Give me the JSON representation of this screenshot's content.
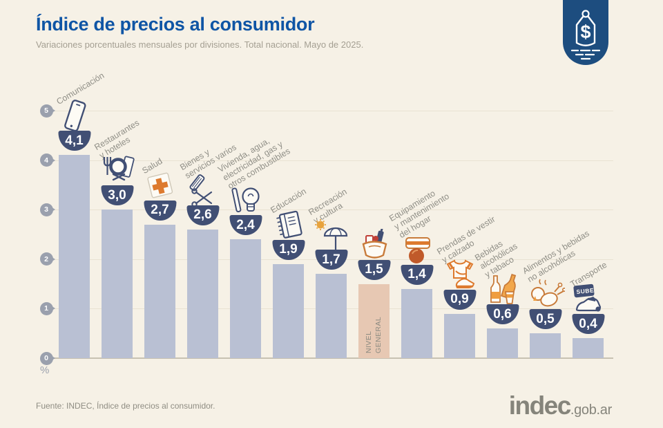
{
  "header": {
    "title": "Índice de precios al consumidor",
    "subtitle": "Variaciones porcentuales mensuales por divisiones. Total nacional. Mayo de 2025."
  },
  "brand": {
    "tag_icon": "price-tag-icon",
    "tag_symbol": "$"
  },
  "chart_data": {
    "type": "bar",
    "title": "Índice de precios al consumidor",
    "subtitle": "Variaciones porcentuales mensuales por divisiones. Total nacional. Mayo de 2025.",
    "unit": "%",
    "ylim": [
      0,
      5
    ],
    "yticks": [
      0,
      1,
      2,
      3,
      4,
      5
    ],
    "grid": true,
    "legend": "none",
    "highlight_category": "Nivel general",
    "categories": [
      "Comunicación",
      "Restaurantes y hoteles",
      "Salud",
      "Bienes y servicios varios",
      "Vivienda, agua, electricidad, gas y otros combustibles",
      "Educación",
      "Recreación y cultura",
      "Nivel general",
      "Equipamiento y mantenimiento del hogar",
      "Prendas de vestir y calzado",
      "Bebidas alcohólicas y tabaco",
      "Alimentos y bebidas no alcohólicas",
      "Transporte"
    ],
    "values": [
      4.1,
      3.0,
      2.7,
      2.6,
      2.4,
      1.9,
      1.7,
      1.5,
      1.4,
      0.9,
      0.6,
      0.5,
      0.4
    ],
    "items": [
      {
        "label": "Comunicación",
        "label_lines": [
          "Comunicación"
        ],
        "value": 4.1,
        "value_label": "4,1",
        "icon": "phone-icon",
        "highlighted": false
      },
      {
        "label": "Restaurantes y hoteles",
        "label_lines": [
          "Restaurantes",
          "y hoteles"
        ],
        "value": 3.0,
        "value_label": "3,0",
        "icon": "restaurant-icon",
        "highlighted": false
      },
      {
        "label": "Salud",
        "label_lines": [
          "Salud"
        ],
        "value": 2.7,
        "value_label": "2,7",
        "icon": "health-cross-icon",
        "highlighted": false
      },
      {
        "label": "Bienes y servicios varios",
        "label_lines": [
          "Bienes y",
          "servicios varios"
        ],
        "value": 2.6,
        "value_label": "2,6",
        "icon": "comb-scissors-icon",
        "highlighted": false
      },
      {
        "label": "Vivienda, agua, electricidad, gas y otros combustibles",
        "label_lines": [
          "Vivienda, agua,",
          "electricidad, gas y",
          "otros combustibles"
        ],
        "value": 2.4,
        "value_label": "2,4",
        "icon": "lightbulb-icon",
        "highlighted": false
      },
      {
        "label": "Educación",
        "label_lines": [
          "Educación"
        ],
        "value": 1.9,
        "value_label": "1,9",
        "icon": "notebook-icon",
        "highlighted": false
      },
      {
        "label": "Recreación y cultura",
        "label_lines": [
          "Recreación",
          "y cultura"
        ],
        "value": 1.7,
        "value_label": "1,7",
        "icon": "sun-umbrella-icon",
        "highlighted": false
      },
      {
        "label": "Nivel general",
        "label_lines": [
          "NIVEL",
          "GENERAL"
        ],
        "value": 1.5,
        "value_label": "1,5",
        "icon": "shopping-basket-icon",
        "highlighted": true
      },
      {
        "label": "Equipamiento y mantenimiento del hogar",
        "label_lines": [
          "Equipamiento",
          "y mantenimiento",
          "del hogar"
        ],
        "value": 1.4,
        "value_label": "1,4",
        "icon": "furniture-icon",
        "highlighted": false
      },
      {
        "label": "Prendas de vestir y calzado",
        "label_lines": [
          "Prendas de vestir",
          "y calzado"
        ],
        "value": 0.9,
        "value_label": "0,9",
        "icon": "tshirt-shoe-icon",
        "highlighted": false
      },
      {
        "label": "Bebidas alcohólicas y tabaco",
        "label_lines": [
          "Bebidas",
          "alcohólicas",
          "y tabaco"
        ],
        "value": 0.6,
        "value_label": "0,6",
        "icon": "bottles-icon",
        "highlighted": false
      },
      {
        "label": "Alimentos y bebidas no alcohólicas",
        "label_lines": [
          "Alimentos y bebidas",
          "no alcohólicas"
        ],
        "value": 0.5,
        "value_label": "0,5",
        "icon": "chicken-icon",
        "highlighted": false
      },
      {
        "label": "Transporte",
        "label_lines": [
          "Transporte"
        ],
        "value": 0.4,
        "value_label": "0,4",
        "icon": "car-sube-icon",
        "highlighted": false
      }
    ]
  },
  "footer": {
    "source": "Fuente: INDEC, Índice de precios al consumidor.",
    "logo": "indec",
    "logo_suffix": ".gob.ar"
  },
  "colors": {
    "background_cream": "#f6f1e6",
    "title_blue": "#0f55a5",
    "bar_fill": "#b9c0d3",
    "highlight_bar_fill": "#e7c8b3",
    "value_bubble_navy": "#414f74",
    "brand_tag_navy": "#1d4d7f",
    "accent_orange": "#dd7a2e",
    "label_gray": "#8f8e86",
    "pin_gray": "#9aa0ad"
  }
}
